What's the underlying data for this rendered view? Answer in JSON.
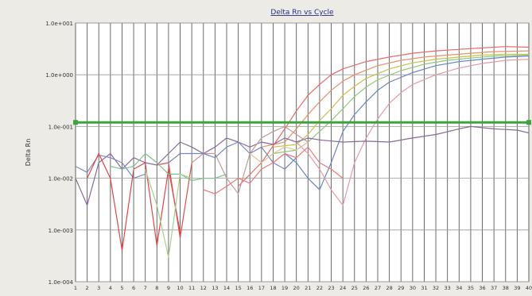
{
  "chart_data": {
    "type": "line",
    "title": "Delta Rn vs Cycle",
    "ylabel": "Delta Rn",
    "xlabel": "",
    "y_scale": "log",
    "ylim": [
      0.0001,
      10
    ],
    "xlim": [
      1,
      40
    ],
    "y_ticks": [
      "1.0e+001",
      "1.0e+000",
      "1.0e-001",
      "1.0e-002",
      "1.0e-003",
      "1.0e-004"
    ],
    "x_ticks": [
      "1",
      "2",
      "3",
      "4",
      "5",
      "6",
      "7",
      "8",
      "9",
      "10",
      "11",
      "12",
      "13",
      "14",
      "15",
      "16",
      "17",
      "18",
      "19",
      "20",
      "21",
      "22",
      "23",
      "24",
      "25",
      "26",
      "27",
      "28",
      "29",
      "30",
      "31",
      "32",
      "33",
      "34",
      "35",
      "36",
      "37",
      "38",
      "39",
      "40"
    ],
    "grid": "vertical",
    "threshold": 0.12,
    "threshold_color": "#3ea33e",
    "series": [
      {
        "color": "#ec6a6a",
        "points": [
          [
            15,
            0.007
          ],
          [
            17,
            0.02
          ],
          [
            19,
            0.09
          ],
          [
            20,
            0.2
          ],
          [
            21,
            0.4
          ],
          [
            22,
            0.65
          ],
          [
            23,
            1.0
          ],
          [
            24,
            1.3
          ],
          [
            26,
            1.8
          ],
          [
            28,
            2.2
          ],
          [
            30,
            2.6
          ],
          [
            32,
            2.9
          ],
          [
            34,
            3.1
          ],
          [
            36,
            3.3
          ],
          [
            38,
            3.5
          ],
          [
            40,
            3.4
          ]
        ]
      },
      {
        "color": "#ee8e6a",
        "points": [
          [
            17,
            0.04
          ],
          [
            19,
            0.05
          ],
          [
            20,
            0.09
          ],
          [
            21,
            0.17
          ],
          [
            22,
            0.3
          ],
          [
            23,
            0.5
          ],
          [
            24,
            0.75
          ],
          [
            25,
            1.0
          ],
          [
            27,
            1.5
          ],
          [
            29,
            1.9
          ],
          [
            31,
            2.2
          ],
          [
            33,
            2.4
          ],
          [
            35,
            2.6
          ],
          [
            37,
            2.8
          ],
          [
            40,
            2.9
          ]
        ]
      },
      {
        "color": "#c9c24a",
        "points": [
          [
            18,
            0.04
          ],
          [
            20,
            0.045
          ],
          [
            21,
            0.07
          ],
          [
            22,
            0.13
          ],
          [
            23,
            0.22
          ],
          [
            24,
            0.4
          ],
          [
            25,
            0.6
          ],
          [
            26,
            0.85
          ],
          [
            28,
            1.3
          ],
          [
            30,
            1.7
          ],
          [
            32,
            2.0
          ],
          [
            34,
            2.2
          ],
          [
            36,
            2.4
          ],
          [
            38,
            2.5
          ],
          [
            40,
            2.5
          ]
        ]
      },
      {
        "color": "#8cc97a",
        "points": [
          [
            18,
            0.03
          ],
          [
            20,
            0.035
          ],
          [
            21,
            0.05
          ],
          [
            22,
            0.08
          ],
          [
            23,
            0.13
          ],
          [
            24,
            0.22
          ],
          [
            25,
            0.38
          ],
          [
            26,
            0.58
          ],
          [
            27,
            0.8
          ],
          [
            29,
            1.2
          ],
          [
            31,
            1.6
          ],
          [
            33,
            1.9
          ],
          [
            35,
            2.1
          ],
          [
            37,
            2.3
          ],
          [
            40,
            2.4
          ]
        ]
      },
      {
        "color": "#6a87c9",
        "points": [
          [
            19,
            0.03
          ],
          [
            20,
            0.02
          ],
          [
            21,
            0.01
          ],
          [
            22,
            0.006
          ],
          [
            23,
            0.02
          ],
          [
            24,
            0.08
          ],
          [
            25,
            0.17
          ],
          [
            26,
            0.3
          ],
          [
            27,
            0.5
          ],
          [
            28,
            0.72
          ],
          [
            30,
            1.1
          ],
          [
            32,
            1.5
          ],
          [
            34,
            1.8
          ],
          [
            36,
            2.0
          ],
          [
            38,
            2.2
          ],
          [
            40,
            2.3
          ]
        ]
      },
      {
        "color": "#e89aa6",
        "points": [
          [
            20,
            0.05
          ],
          [
            21,
            0.03
          ],
          [
            22,
            0.015
          ],
          [
            23,
            0.006
          ],
          [
            24,
            0.003
          ],
          [
            25,
            0.02
          ],
          [
            26,
            0.06
          ],
          [
            27,
            0.14
          ],
          [
            28,
            0.28
          ],
          [
            29,
            0.45
          ],
          [
            30,
            0.65
          ],
          [
            32,
            1.0
          ],
          [
            34,
            1.35
          ],
          [
            36,
            1.65
          ],
          [
            38,
            1.9
          ],
          [
            40,
            2.0
          ]
        ]
      },
      {
        "color": "#8a6a9a",
        "points": [
          [
            1,
            0.01
          ],
          [
            2,
            0.003
          ],
          [
            3,
            0.02
          ],
          [
            4,
            0.03
          ],
          [
            5,
            0.015
          ],
          [
            6,
            0.025
          ],
          [
            7,
            0.02
          ],
          [
            8,
            0.018
          ],
          [
            9,
            0.03
          ],
          [
            10,
            0.05
          ],
          [
            11,
            0.04
          ],
          [
            12,
            0.03
          ],
          [
            13,
            0.04
          ],
          [
            14,
            0.06
          ],
          [
            15,
            0.05
          ],
          [
            16,
            0.04
          ],
          [
            17,
            0.05
          ],
          [
            18,
            0.045
          ],
          [
            19,
            0.06
          ],
          [
            20,
            0.05
          ],
          [
            21,
            0.06
          ],
          [
            22,
            0.055
          ],
          [
            24,
            0.05
          ],
          [
            26,
            0.052
          ],
          [
            28,
            0.05
          ],
          [
            30,
            0.06
          ],
          [
            32,
            0.07
          ],
          [
            34,
            0.09
          ],
          [
            35,
            0.1
          ],
          [
            37,
            0.09
          ],
          [
            39,
            0.085
          ],
          [
            40,
            0.075
          ]
        ]
      },
      {
        "color": "#7e88c8",
        "points": [
          [
            1,
            0.017
          ],
          [
            2,
            0.013
          ],
          [
            3,
            0.028
          ],
          [
            4,
            0.025
          ],
          [
            5,
            0.02
          ],
          [
            6,
            0.01
          ],
          [
            7,
            0.012
          ]
        ]
      },
      {
        "color": "#e44646",
        "points": [
          [
            2,
            0.01
          ],
          [
            3,
            0.03
          ],
          [
            4,
            0.01
          ],
          [
            5,
            0.0004
          ],
          [
            6,
            0.015
          ],
          [
            7,
            0.02
          ],
          [
            8,
            0.0005
          ],
          [
            9,
            0.015
          ],
          [
            10,
            0.0009
          ]
        ]
      },
      {
        "color": "#e05050",
        "points": [
          [
            8,
            0.018
          ],
          [
            9,
            0.02
          ],
          [
            10,
            0.0007
          ],
          [
            11,
            0.02
          ]
        ]
      },
      {
        "color": "#7ec48a",
        "points": [
          [
            4,
            0.017
          ],
          [
            5,
            0.015
          ],
          [
            6,
            0.017
          ],
          [
            7,
            0.03
          ],
          [
            8,
            0.02
          ],
          [
            9,
            0.012
          ],
          [
            10,
            0.012
          ],
          [
            11,
            0.009
          ],
          [
            12,
            0.01
          ],
          [
            13,
            0.01
          ],
          [
            14,
            0.012
          ]
        ]
      },
      {
        "color": "#a7d08a",
        "points": [
          [
            7,
            0.015
          ],
          [
            8,
            0.003
          ],
          [
            9,
            0.0003
          ],
          [
            10,
            0.012
          ],
          [
            11,
            0.01
          ]
        ]
      },
      {
        "color": "#c59a9a",
        "points": [
          [
            11,
            0.02
          ],
          [
            12,
            0.03
          ],
          [
            13,
            0.03
          ],
          [
            14,
            0.01
          ],
          [
            15,
            0.005
          ],
          [
            16,
            0.03
          ],
          [
            17,
            0.06
          ],
          [
            18,
            0.08
          ],
          [
            19,
            0.1
          ],
          [
            20,
            0.07
          ],
          [
            21,
            0.05
          ]
        ]
      },
      {
        "color": "#7a86c4",
        "points": [
          [
            9,
            0.02
          ],
          [
            10,
            0.03
          ],
          [
            11,
            0.03
          ],
          [
            12,
            0.03
          ],
          [
            13,
            0.025
          ],
          [
            14,
            0.04
          ],
          [
            15,
            0.05
          ],
          [
            16,
            0.03
          ],
          [
            17,
            0.04
          ],
          [
            18,
            0.02
          ],
          [
            19,
            0.015
          ],
          [
            20,
            0.025
          ]
        ]
      },
      {
        "color": "#f07878",
        "points": [
          [
            12,
            0.006
          ],
          [
            13,
            0.005
          ],
          [
            14,
            0.007
          ],
          [
            15,
            0.01
          ],
          [
            16,
            0.008
          ],
          [
            17,
            0.015
          ],
          [
            18,
            0.02
          ],
          [
            19,
            0.03
          ],
          [
            20,
            0.025
          ],
          [
            21,
            0.04
          ],
          [
            22,
            0.02
          ],
          [
            23,
            0.015
          ],
          [
            24,
            0.01
          ]
        ]
      },
      {
        "color": "#e6c39a",
        "points": [
          [
            16,
            0.03
          ],
          [
            17,
            0.02
          ],
          [
            18,
            0.03
          ],
          [
            19,
            0.04
          ],
          [
            20,
            0.035
          ],
          [
            21,
            0.05
          ]
        ]
      }
    ]
  }
}
